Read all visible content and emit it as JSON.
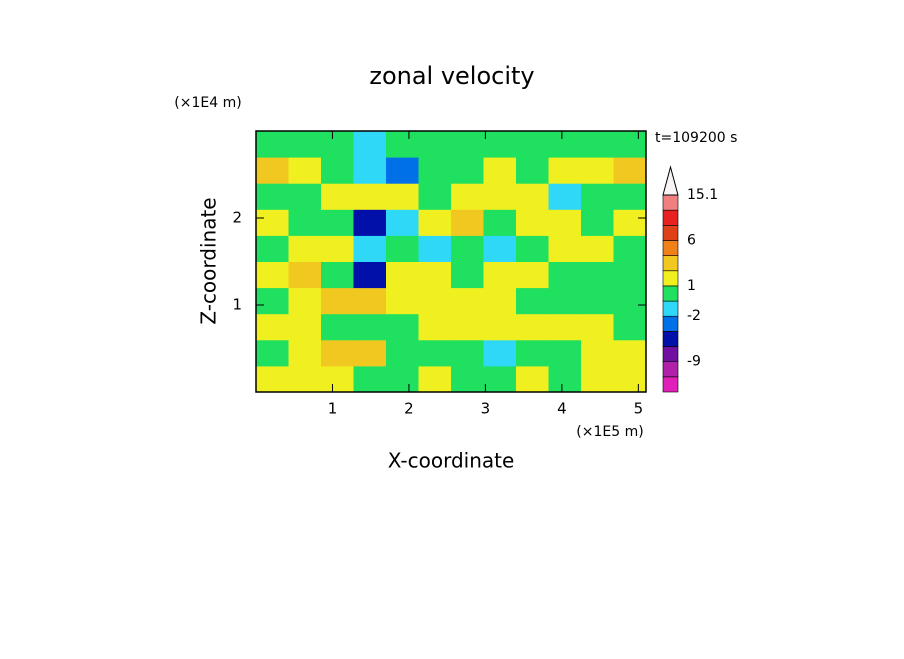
{
  "chart_data": {
    "type": "contour",
    "title": "zonal velocity",
    "x_label": "X-coordinate",
    "y_label": "Z-coordinate",
    "x_unit": "(×1E5 m)",
    "y_unit": "(×1E4 m)",
    "annotation": "t=109200 s",
    "xlim": [
      0,
      5.1
    ],
    "ylim": [
      0,
      3
    ],
    "xticks": [
      1,
      2,
      3,
      4,
      5
    ],
    "yticks": [
      1,
      2
    ],
    "z": [
      [
        1.5,
        1.5,
        1.5,
        0,
        0,
        1.5,
        0,
        0,
        1.5,
        0,
        1.5,
        1.5
      ],
      [
        0,
        1.5,
        2.5,
        2.5,
        0,
        0,
        0,
        -1.5,
        0,
        0,
        1.5,
        1.5
      ],
      [
        1.5,
        1.5,
        0,
        0,
        0,
        1.5,
        1.5,
        1.5,
        1.5,
        1.5,
        1.5,
        0
      ],
      [
        0,
        1.5,
        2.5,
        2.5,
        1.5,
        1.5,
        1.5,
        1.5,
        0,
        0,
        0,
        0
      ],
      [
        1.5,
        2.5,
        0,
        -4.5,
        1.5,
        1.5,
        0,
        1.5,
        1.5,
        0,
        0,
        0
      ],
      [
        0,
        1.5,
        1.5,
        -1.5,
        0,
        -1.5,
        0,
        -1.5,
        0,
        1.5,
        1.5,
        0
      ],
      [
        1.5,
        0,
        0,
        -4.5,
        -1.5,
        1.5,
        2.5,
        0,
        1.5,
        1.5,
        0,
        1.5
      ],
      [
        0,
        0,
        1.5,
        1.5,
        1.5,
        0,
        1.5,
        1.5,
        1.5,
        -1.5,
        0,
        0
      ],
      [
        2.5,
        1.5,
        0,
        -1.5,
        -3,
        0,
        0,
        1.5,
        0.5,
        1.5,
        1.5,
        2.5
      ],
      [
        0,
        0,
        0,
        -1.5,
        0,
        0,
        0,
        0,
        0,
        0,
        0,
        0
      ]
    ],
    "colorbar": {
      "levels": [
        -16,
        -12,
        -9,
        -6,
        -4,
        -2,
        -1,
        1,
        2,
        3,
        6,
        9,
        12,
        15.1
      ],
      "colors": [
        "#e020b8",
        "#b020a8",
        "#7010a0",
        "#0010a8",
        "#0070e8",
        "#30d8f8",
        "#20e060",
        "#f0f020",
        "#f0c820",
        "#f08018",
        "#e04018",
        "#e82020",
        "#f08080"
      ],
      "over_color": "#f8f4f4",
      "ticks": [
        15.1,
        6,
        1,
        -2,
        -9
      ]
    }
  }
}
